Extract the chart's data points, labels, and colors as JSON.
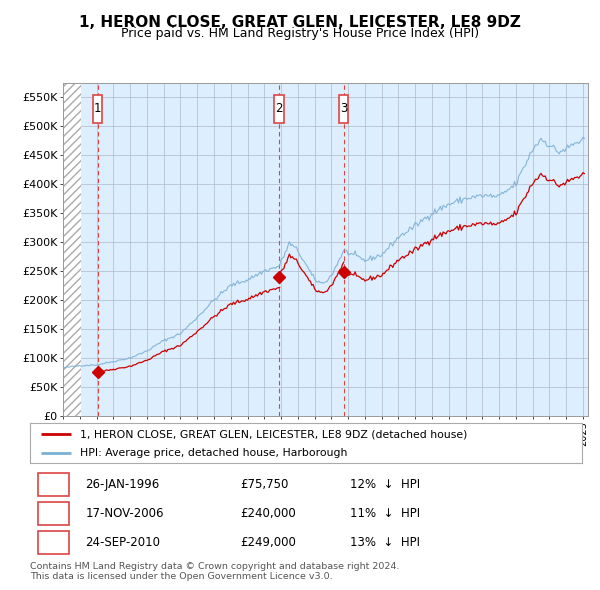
{
  "title": "1, HERON CLOSE, GREAT GLEN, LEICESTER, LE8 9DZ",
  "subtitle": "Price paid vs. HM Land Registry's House Price Index (HPI)",
  "title_fontsize": 11,
  "subtitle_fontsize": 9,
  "ylim": [
    0,
    575000
  ],
  "yticks": [
    0,
    50000,
    100000,
    150000,
    200000,
    250000,
    300000,
    350000,
    400000,
    450000,
    500000,
    550000
  ],
  "ytick_labels": [
    "£0",
    "£50K",
    "£100K",
    "£150K",
    "£200K",
    "£250K",
    "£300K",
    "£350K",
    "£400K",
    "£450K",
    "£500K",
    "£550K"
  ],
  "background_color": "#ffffff",
  "plot_bg_color": "#ddeeff",
  "grid_color": "#b0b8c8",
  "purchases": [
    {
      "label": "1",
      "date": 1996.07,
      "price": 75750,
      "date_str": "26-JAN-1996",
      "pct": "12%",
      "direction": "↓"
    },
    {
      "label": "2",
      "date": 2006.88,
      "price": 240000,
      "date_str": "17-NOV-2006",
      "pct": "11%",
      "direction": "↓"
    },
    {
      "label": "3",
      "date": 2010.73,
      "price": 249000,
      "date_str": "24-SEP-2010",
      "pct": "13%",
      "direction": "↓"
    }
  ],
  "legend_line1": "1, HERON CLOSE, GREAT GLEN, LEICESTER, LE8 9DZ (detached house)",
  "legend_line2": "HPI: Average price, detached house, Harborough",
  "footer1": "Contains HM Land Registry data © Crown copyright and database right 2024.",
  "footer2": "This data is licensed under the Open Government Licence v3.0.",
  "purchase_color": "#cc0000",
  "hpi_color": "#7ab0d4",
  "dashed_line_color": "#dd4444",
  "xmin": 1994.0,
  "xmax": 2025.3
}
